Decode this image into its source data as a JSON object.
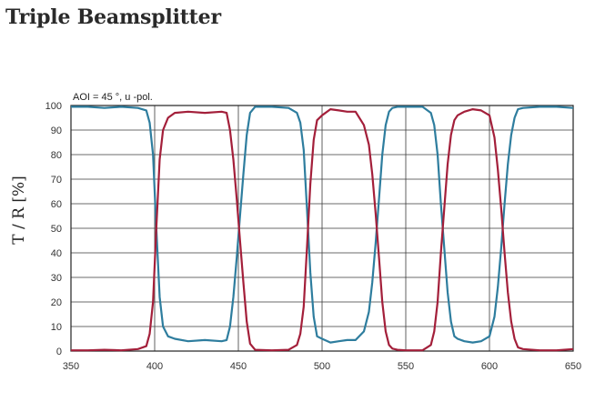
{
  "page": {
    "title": "Triple Beamsplitter"
  },
  "chart_data": {
    "type": "line",
    "title": "Triple Beamsplitter",
    "annotation": "AOI = 45 °, u -pol.",
    "xlabel": "",
    "ylabel": "T / R [%]",
    "xlim": [
      350,
      650
    ],
    "ylim": [
      0,
      100
    ],
    "x_ticks": [
      350,
      400,
      450,
      500,
      550,
      600,
      650
    ],
    "y_ticks": [
      0,
      10,
      20,
      30,
      40,
      50,
      60,
      70,
      80,
      90,
      100
    ],
    "grid": true,
    "series": [
      {
        "color": "#2e7d9e",
        "x": [
          350,
          360,
          370,
          380,
          390,
          395,
          397,
          399,
          401,
          403,
          405,
          408,
          412,
          420,
          430,
          440,
          443,
          445,
          447,
          449,
          451,
          453,
          455,
          457,
          460,
          470,
          480,
          485,
          487,
          489,
          491,
          493,
          495,
          497,
          500,
          505,
          510,
          515,
          520,
          525,
          528,
          530,
          532,
          534,
          536,
          538,
          540,
          542,
          545,
          550,
          555,
          560,
          565,
          567,
          569,
          571,
          573,
          575,
          577,
          579,
          581,
          585,
          590,
          595,
          600,
          603,
          605,
          607,
          609,
          611,
          613,
          615,
          617,
          620,
          630,
          640,
          650
        ],
        "y": [
          99.5,
          99.5,
          99,
          99.5,
          99,
          98,
          93,
          80,
          50,
          22,
          10,
          6,
          5,
          4,
          4.5,
          4,
          4.5,
          10,
          22,
          38,
          55,
          72,
          88,
          97,
          99.5,
          99.5,
          99,
          97,
          93,
          82,
          58,
          32,
          14,
          6,
          5,
          3.5,
          4,
          4.5,
          4.5,
          8,
          16,
          28,
          44,
          62,
          80,
          92,
          97.5,
          99,
          99.5,
          99.5,
          99.5,
          99.5,
          97,
          92,
          80,
          60,
          42,
          24,
          12,
          6,
          5,
          4,
          3.5,
          4,
          6,
          14,
          26,
          42,
          60,
          76,
          88,
          95,
          98.5,
          99,
          99.5,
          99.5,
          99
        ]
      },
      {
        "color": "#a31f3a",
        "x": [
          350,
          360,
          370,
          380,
          390,
          395,
          397,
          399,
          401,
          403,
          405,
          408,
          412,
          420,
          430,
          440,
          443,
          445,
          447,
          449,
          451,
          453,
          455,
          457,
          460,
          470,
          480,
          485,
          487,
          489,
          491,
          493,
          495,
          497,
          500,
          505,
          510,
          515,
          520,
          525,
          528,
          530,
          532,
          534,
          536,
          538,
          540,
          542,
          545,
          550,
          555,
          560,
          565,
          567,
          569,
          571,
          573,
          575,
          577,
          579,
          581,
          585,
          590,
          595,
          600,
          603,
          605,
          607,
          609,
          611,
          613,
          615,
          617,
          620,
          630,
          640,
          650
        ],
        "y": [
          0.3,
          0.3,
          0.5,
          0.3,
          0.8,
          2,
          7,
          20,
          50,
          78,
          90,
          95,
          97,
          97.5,
          97,
          97.5,
          97,
          90,
          78,
          62,
          45,
          28,
          12,
          3,
          0.5,
          0.3,
          0.5,
          2.5,
          7,
          18,
          42,
          68,
          86,
          94,
          96,
          98.5,
          98,
          97.5,
          97.5,
          92,
          84,
          72,
          56,
          38,
          20,
          8,
          2.5,
          1,
          0.5,
          0.3,
          0.3,
          0.3,
          2.5,
          8,
          20,
          40,
          58,
          76,
          88,
          94,
          96,
          97.5,
          98.5,
          98,
          96,
          87,
          74,
          58,
          40,
          24,
          12,
          5,
          1.5,
          0.8,
          0.3,
          0.3,
          0.8
        ]
      }
    ]
  }
}
